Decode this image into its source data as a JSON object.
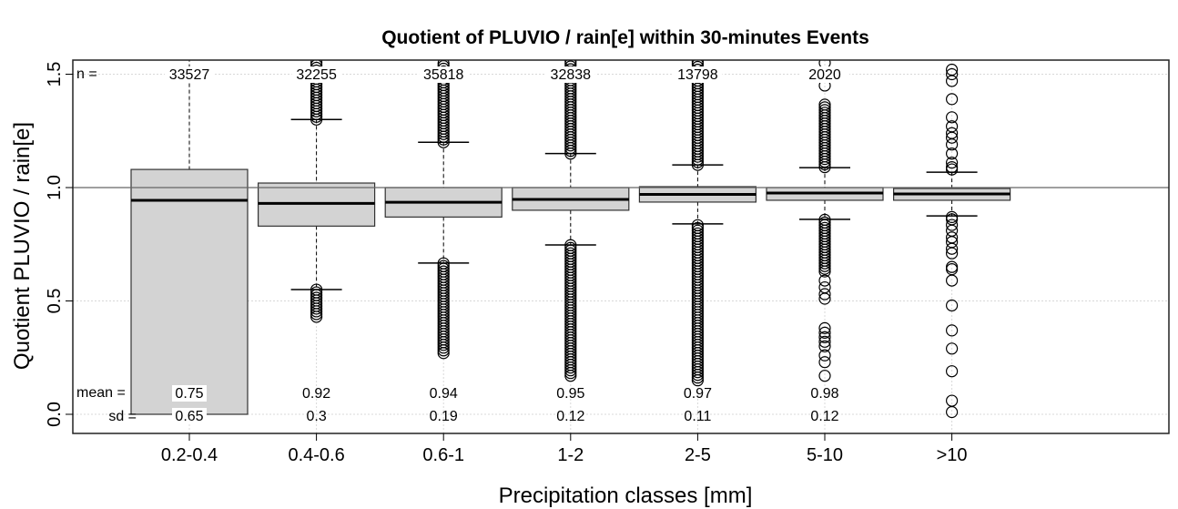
{
  "chart_data": {
    "type": "boxplot",
    "title": "Quotient of PLUVIO / rain[e] within 30-minutes Events",
    "xlabel": "Precipitation classes [mm]",
    "ylabel": "Quotient PLUVIO / rain[e]",
    "ylim": [
      -0.085,
      1.56
    ],
    "yticks": [
      "0.0",
      "0.5",
      "1.0",
      "1.5"
    ],
    "ytick_values": [
      0,
      0.5,
      1.0,
      1.5
    ],
    "reference_line": 1.0,
    "grid": true,
    "categories": [
      "0.2-0.4",
      "0.4-0.6",
      "0.6-1",
      "1-2",
      "2-5",
      "5-10",
      ">10"
    ],
    "row_labels": {
      "n": "n =",
      "mean": "mean =",
      "sd": "sd ="
    },
    "n": [
      "33527",
      "32255",
      "35818",
      "32838",
      "13798",
      "2020",
      ""
    ],
    "mean": [
      "0.75",
      "0.92",
      "0.94",
      "0.95",
      "0.97",
      "0.98",
      ""
    ],
    "sd": [
      "0.65",
      "0.3",
      "0.19",
      "0.12",
      "0.11",
      "0.12",
      ""
    ],
    "boxes": [
      {
        "whisker_low": 0.0,
        "q1": 0.0,
        "median": 0.944,
        "q3": 1.08,
        "whisker_high": 1.6,
        "outlier_ranges": [],
        "outliers": []
      },
      {
        "whisker_low": 0.55,
        "q1": 0.83,
        "median": 0.93,
        "q3": 1.02,
        "whisker_high": 1.3,
        "outlier_ranges": [
          [
            1.3,
            1.56
          ],
          [
            0.43,
            0.55
          ]
        ],
        "outliers": []
      },
      {
        "whisker_low": 0.667,
        "q1": 0.87,
        "median": 0.935,
        "q3": 1.0,
        "whisker_high": 1.2,
        "outlier_ranges": [
          [
            1.2,
            1.56
          ],
          [
            0.27,
            0.667
          ]
        ],
        "outliers": []
      },
      {
        "whisker_low": 0.747,
        "q1": 0.9,
        "median": 0.948,
        "q3": 1.0,
        "whisker_high": 1.15,
        "outlier_ranges": [
          [
            1.15,
            1.56
          ],
          [
            0.17,
            0.747
          ]
        ],
        "outliers": []
      },
      {
        "whisker_low": 0.84,
        "q1": 0.936,
        "median": 0.97,
        "q3": 1.004,
        "whisker_high": 1.1,
        "outlier_ranges": [
          [
            1.1,
            1.56
          ],
          [
            0.15,
            0.84
          ]
        ],
        "outliers": []
      },
      {
        "whisker_low": 0.86,
        "q1": 0.944,
        "median": 0.976,
        "q3": 1.0,
        "whisker_high": 1.088,
        "outlier_ranges": [
          [
            1.09,
            1.37
          ],
          [
            0.63,
            0.86
          ]
        ],
        "outliers": [
          1.45,
          1.55,
          0.59,
          0.56,
          0.53,
          0.51,
          0.38,
          0.36,
          0.34,
          0.32,
          0.3,
          0.26,
          0.23,
          0.17
        ]
      },
      {
        "whisker_low": 0.875,
        "q1": 0.944,
        "median": 0.972,
        "q3": 0.996,
        "whisker_high": 1.068,
        "outlier_ranges": [],
        "outliers": [
          1.52,
          1.5,
          1.47,
          1.39,
          1.31,
          1.27,
          1.24,
          1.22,
          1.19,
          1.15,
          1.11,
          1.09,
          1.08,
          0.87,
          0.86,
          0.835,
          0.81,
          0.78,
          0.76,
          0.73,
          0.71,
          0.65,
          0.64,
          0.59,
          0.48,
          0.37,
          0.29,
          0.19,
          0.06,
          0.01
        ]
      }
    ]
  }
}
